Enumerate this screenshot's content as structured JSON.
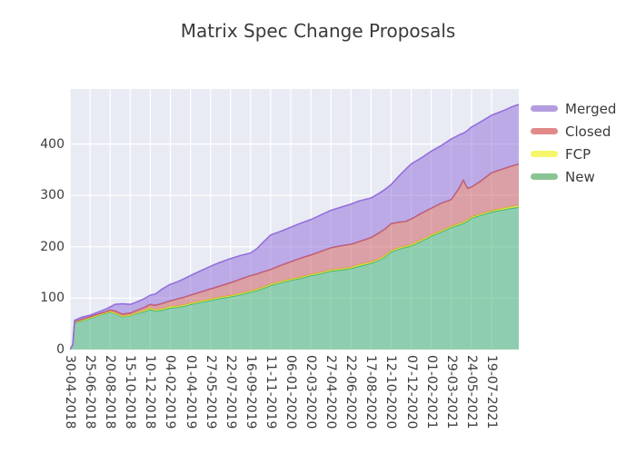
{
  "title": "Matrix Spec Change Proposals",
  "colors": {
    "figure_bg": "#ffffff",
    "plot_bg": "#e9ebf4",
    "grid": "#ffffff",
    "title_text": "#3a3a3a",
    "tick_text": "#3d3d3d",
    "legend_text": "#3b3b3b"
  },
  "axes": {
    "y_ticks": [
      "0",
      "100",
      "200",
      "300",
      "400"
    ],
    "x_tick_labels": [
      "30-04-2018",
      "25-06-2018",
      "20-08-2018",
      "15-10-2018",
      "10-12-2018",
      "04-02-2019",
      "01-04-2019",
      "27-05-2019",
      "22-07-2019",
      "16-09-2019",
      "11-11-2019",
      "06-01-2020",
      "02-03-2020",
      "27-04-2020",
      "22-06-2020",
      "17-08-2020",
      "12-10-2020",
      "07-12-2020",
      "01-02-2021",
      "29-03-2021",
      "24-05-2021",
      "19-07-2021"
    ]
  },
  "legend": {
    "items": [
      {
        "label": "Merged",
        "color": "#b49dde"
      },
      {
        "label": "Closed",
        "color": "#e08a8a"
      },
      {
        "label": "FCP",
        "color": "#f6f66a"
      },
      {
        "label": "New",
        "color": "#89c593"
      }
    ]
  },
  "chart_data": {
    "type": "area",
    "stacked": true,
    "title": "Matrix Spec Change Proposals",
    "grid": true,
    "legend_position": "right-top",
    "ylim": [
      0,
      507
    ],
    "y_ticks": [
      0,
      100,
      200,
      300,
      400
    ],
    "x_tick_labels": [
      "30-04-2018",
      "25-06-2018",
      "20-08-2018",
      "15-10-2018",
      "10-12-2018",
      "04-02-2019",
      "01-04-2019",
      "27-05-2019",
      "22-07-2019",
      "16-09-2019",
      "11-11-2019",
      "06-01-2020",
      "02-03-2020",
      "27-04-2020",
      "22-06-2020",
      "17-08-2020",
      "12-10-2020",
      "07-12-2020",
      "01-02-2021",
      "29-03-2021",
      "24-05-2021",
      "19-07-2021"
    ],
    "x_tick_spacing_days": 56,
    "x_index_range": [
      0,
      22.36
    ],
    "x_index": [
      0,
      0.14,
      0.23,
      0.6,
      1,
      1.4,
      1.8,
      2,
      2.25,
      2.6,
      3,
      3.3,
      3.7,
      4,
      4.25,
      4.6,
      5,
      5.3,
      5.7,
      6,
      6.5,
      7,
      7.5,
      8,
      8.5,
      9,
      9.3,
      9.6,
      10,
      10.5,
      11,
      11.5,
      12,
      12.5,
      13,
      13.5,
      14,
      14.4,
      15,
      15.4,
      15.7,
      16,
      16.4,
      16.7,
      17,
      17.5,
      18,
      18.5,
      19,
      19.4,
      19.6,
      19.8,
      20,
      20.5,
      21,
      21.6,
      22,
      22.36
    ],
    "stack_order_bottom_to_top": [
      "New",
      "FCP",
      "Closed",
      "Merged"
    ],
    "series": [
      {
        "name": "New",
        "line_color": "#3cb371",
        "fill_color": "rgba(60,179,113,0.52)",
        "values": [
          0,
          8,
          52,
          56,
          61,
          66,
          71,
          73,
          70,
          64,
          66,
          70,
          74,
          78,
          75,
          77,
          81,
          82,
          85,
          88,
          92,
          96,
          100,
          103,
          107,
          112,
          115,
          119,
          125,
          130,
          135,
          139,
          144,
          148,
          153,
          155,
          158,
          162,
          168,
          174,
          181,
          190,
          196,
          199,
          202,
          211,
          221,
          229,
          238,
          243,
          246,
          250,
          256,
          262,
          268,
          272,
          275,
          277
        ]
      },
      {
        "name": "FCP",
        "line_color": "#e4e43a",
        "fill_color": "rgba(250,250,60,0.55)",
        "values": [
          0,
          0,
          1,
          1,
          1,
          1,
          1,
          1,
          1,
          1,
          1,
          1,
          2,
          3,
          2,
          2,
          3,
          2,
          2,
          2,
          2,
          2,
          2,
          2,
          2,
          2,
          2,
          2,
          2,
          2,
          2,
          2,
          2,
          2,
          2,
          2,
          2,
          3,
          2,
          2,
          2,
          2,
          2,
          2,
          2,
          2,
          2,
          2,
          2,
          2,
          2,
          2,
          2,
          2,
          2,
          3,
          3,
          3
        ]
      },
      {
        "name": "Closed",
        "line_color": "#cd5c5c",
        "fill_color": "rgba(205,92,92,0.52)",
        "values": [
          0,
          1,
          1,
          2,
          2,
          2,
          2,
          3,
          4,
          4,
          4,
          5,
          6,
          7,
          9,
          11,
          11,
          14,
          15,
          16,
          18,
          20,
          22,
          25,
          28,
          30,
          30,
          30,
          29,
          32,
          34,
          37,
          38,
          41,
          43,
          45,
          45,
          45,
          48,
          51,
          52,
          53,
          50,
          48,
          50,
          52,
          52,
          54,
          52,
          70,
          82,
          62,
          58,
          65,
          74,
          77,
          79,
          81
        ]
      },
      {
        "name": "Merged",
        "line_color": "#9370db",
        "fill_color": "rgba(147,112,219,0.52)",
        "values": [
          0,
          1,
          3,
          4,
          3,
          4,
          5,
          6,
          13,
          20,
          17,
          16,
          17,
          18,
          22,
          28,
          32,
          33,
          36,
          38,
          41,
          44,
          46,
          47,
          46,
          44,
          49,
          57,
          67,
          66,
          67,
          68,
          69,
          71,
          73,
          75,
          78,
          79,
          77,
          77,
          77,
          76,
          90,
          101,
          107,
          108,
          111,
          112,
          118,
          103,
          91,
          112,
          117,
          115,
          112,
          113,
          115,
          116
        ]
      }
    ]
  }
}
